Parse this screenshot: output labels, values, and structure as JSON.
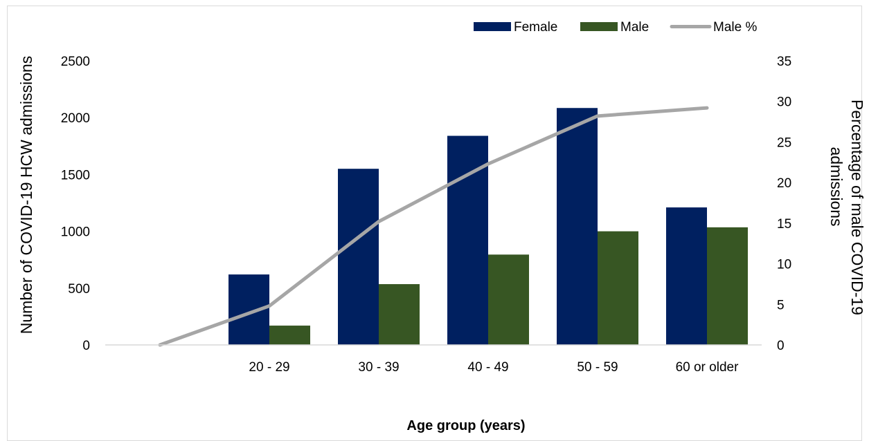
{
  "chart_data": {
    "type": "bar",
    "categories": [
      "",
      "20 - 29",
      "30 - 39",
      "40 - 49",
      "50 - 59",
      "60 or older"
    ],
    "series": [
      {
        "name": "Female",
        "kind": "bar",
        "axis": "left",
        "color": "#002060",
        "values": [
          0,
          620,
          1550,
          1840,
          2085,
          1210
        ]
      },
      {
        "name": "Male",
        "kind": "bar",
        "axis": "left",
        "color": "#375623",
        "values": [
          0,
          170,
          535,
          795,
          1000,
          1035
        ]
      },
      {
        "name": "Male %",
        "kind": "line",
        "axis": "right",
        "color": "#a6a6a6",
        "values": [
          0,
          4.8,
          15.2,
          22.3,
          28.2,
          29.2
        ]
      }
    ],
    "ylabel": "Number of COVID-19 HCW admissions",
    "y2label_line1": "Percentage of male COVID-19",
    "y2label_line2": "admissions",
    "xlabel": "Age group (years)",
    "ylim": [
      0,
      2500
    ],
    "y2lim": [
      0,
      35
    ],
    "yticks": [
      "0",
      "500",
      "1000",
      "1500",
      "2000",
      "2500"
    ],
    "y2ticks": [
      "0",
      "5",
      "10",
      "15",
      "20",
      "25",
      "30",
      "35"
    ],
    "grid": false,
    "legend_position": "top-right"
  }
}
